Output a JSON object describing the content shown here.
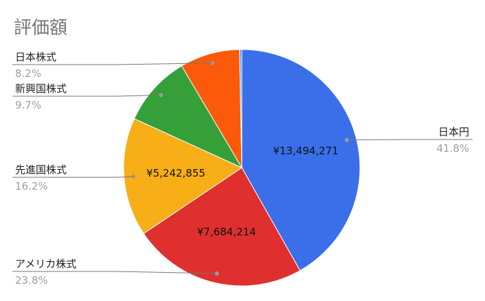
{
  "chart_data": {
    "type": "pie",
    "title": "評価額",
    "slices": [
      {
        "label": "日本円",
        "percent": 41.8,
        "value_label": "¥13,494,271",
        "color": "#3a6fe9"
      },
      {
        "label": "アメリカ株式",
        "percent": 23.8,
        "value_label": "¥7,684,214",
        "color": "#e02f2f"
      },
      {
        "label": "先進国株式",
        "percent": 16.2,
        "value_label": "¥5,242,855",
        "color": "#f7ae17"
      },
      {
        "label": "新興国株式",
        "percent": 9.7,
        "value_label": "",
        "color": "#35a039"
      },
      {
        "label": "日本株式",
        "percent": 8.2,
        "value_label": "",
        "color": "#fb5a0a"
      },
      {
        "label": "",
        "percent": 0.3,
        "value_label": "",
        "color": "#45a5f5"
      }
    ]
  }
}
